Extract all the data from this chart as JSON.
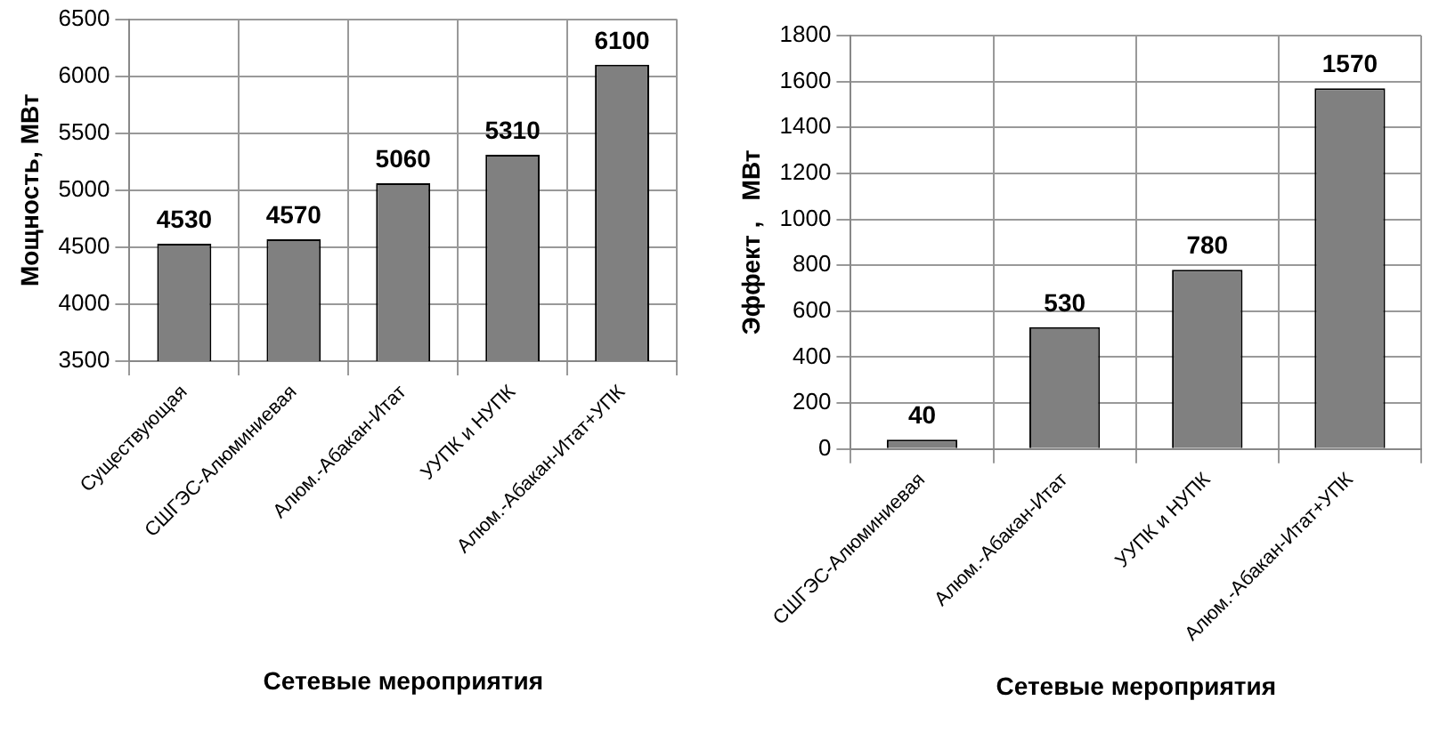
{
  "chart_data": [
    {
      "type": "bar",
      "categories": [
        "Существующая",
        "СШГЭС-Алюминиевая",
        "Алюм.-Абакан-Итат",
        "УУПК и НУПК",
        "Алюм.-Абакан-Итат+УПК"
      ],
      "values": [
        4530,
        4570,
        5060,
        5310,
        6100
      ],
      "color": "#808080",
      "ylim": [
        3500,
        6500
      ],
      "yticks": [
        3500,
        4000,
        4500,
        5000,
        5500,
        6000,
        6500
      ],
      "grid": true,
      "data_labels": true,
      "xlabel": "Сетевые мероприятия",
      "ylabel": "Мощность, МВт"
    },
    {
      "type": "bar",
      "categories": [
        "СШГЭС-Алюминиевая",
        "Алюм.-Абакан-Итат",
        "УУПК и НУПК",
        "Алюм.-Абакан-Итат+УПК"
      ],
      "values": [
        40,
        530,
        780,
        1570
      ],
      "color": "#808080",
      "ylim": [
        0,
        1800
      ],
      "yticks": [
        0,
        200,
        400,
        600,
        800,
        1000,
        1200,
        1400,
        1600,
        1800
      ],
      "grid": true,
      "data_labels": true,
      "xlabel": "Сетевые мероприятия",
      "ylabel": "Эффект ,   МВт"
    }
  ]
}
